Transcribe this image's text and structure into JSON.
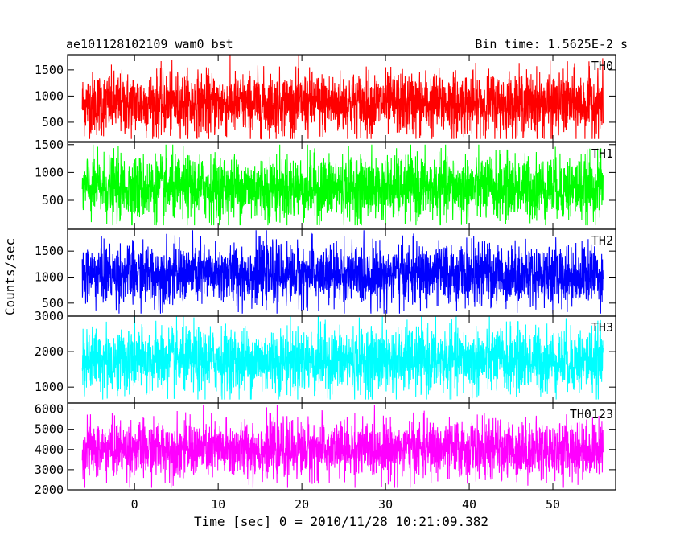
{
  "header": {
    "left_title": "ae101128102109_wam0_bst",
    "right_title": "Bin time: 1.5625E-2 s"
  },
  "axes": {
    "xlabel": "Time [sec] 0 = 2010/11/28 10:21:09.382",
    "ylabel": "Counts/sec"
  },
  "chart_data": {
    "type": "line",
    "title": "ae101128102109_wam0_bst",
    "subtitle": "Bin time: 1.5625E-2 s",
    "xlabel": "Time [sec] 0 = 2010/11/28 10:21:09.382",
    "ylabel": "Counts/sec",
    "xlim": [
      -8.0,
      57.5
    ],
    "x_data_range": [
      -6.25,
      56.0
    ],
    "xticks": [
      0,
      10,
      20,
      30,
      40,
      50
    ],
    "grid": false,
    "legend": "none",
    "panels": [
      {
        "name": "TH0",
        "color": "#ff0000",
        "ylim": [
          130,
          1790
        ],
        "yticks": [
          500,
          1000,
          1500
        ],
        "mean": 850,
        "typical_range": [
          300,
          1500
        ],
        "extremes": [
          180,
          1790
        ]
      },
      {
        "name": "TH1",
        "color": "#00ff00",
        "ylim": [
          -20,
          1540
        ],
        "yticks": [
          500,
          1000,
          1500
        ],
        "mean": 720,
        "typical_range": [
          150,
          1300
        ],
        "extremes": [
          50,
          1500
        ]
      },
      {
        "name": "TH2",
        "color": "#0000ff",
        "ylim": [
          250,
          1920
        ],
        "yticks": [
          500,
          1000,
          1500
        ],
        "mean": 1050,
        "typical_range": [
          500,
          1650
        ],
        "extremes": [
          300,
          1900
        ]
      },
      {
        "name": "TH3",
        "color": "#00ffff",
        "ylim": [
          550,
          3000
        ],
        "yticks": [
          1000,
          2000,
          3000
        ],
        "mean": 1750,
        "typical_range": [
          950,
          2800
        ],
        "extremes": [
          650,
          3000
        ]
      },
      {
        "name": "TH0123",
        "color": "#ff00ff",
        "ylim": [
          2000,
          6300
        ],
        "yticks": [
          2000,
          3000,
          4000,
          5000,
          6000
        ],
        "mean": 4000,
        "typical_range": [
          2700,
          5500
        ],
        "extremes": [
          2100,
          6200
        ]
      }
    ]
  }
}
